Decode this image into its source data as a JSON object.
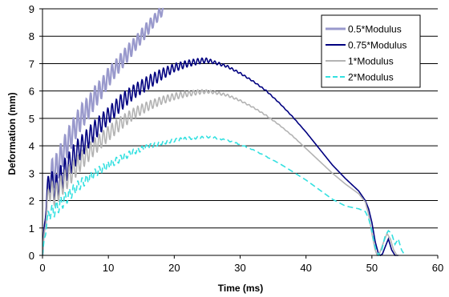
{
  "chart_data": {
    "type": "line",
    "xlabel": "Time (ms)",
    "ylabel": "Deformation (mm)",
    "xlim": [
      0,
      60
    ],
    "ylim": [
      0,
      9
    ],
    "xticks": [
      0,
      10,
      20,
      30,
      40,
      50,
      60
    ],
    "yticks": [
      0,
      1,
      2,
      3,
      4,
      5,
      6,
      7,
      8,
      9
    ],
    "grid": "horizontal",
    "legend_position": "top-right",
    "series": [
      {
        "name": "0.5*Modulus",
        "color": "#9999cc",
        "dash": "solid",
        "x": [
          0,
          0.5,
          1.0,
          1.5,
          2.0,
          3.0,
          4.0,
          5.0,
          6.0,
          7.0,
          8.0,
          9.0,
          10.0,
          11.0,
          12.0,
          13.0,
          14.0,
          15.0,
          16.0,
          17.0,
          18.0,
          18.4
        ],
        "y": [
          0,
          1.5,
          2.6,
          3.0,
          3.1,
          3.7,
          4.2,
          4.7,
          5.1,
          5.4,
          5.8,
          6.1,
          6.5,
          6.8,
          7.1,
          7.4,
          7.7,
          8.0,
          8.3,
          8.6,
          8.9,
          9.0
        ],
        "osc_amp": [
          0,
          0.4,
          0.5,
          0.55,
          0.55,
          0.5,
          0.5,
          0.45,
          0.45,
          0.4,
          0.4,
          0.35,
          0.35,
          0.3,
          0.3,
          0.3,
          0.25,
          0.25,
          0.25,
          0.2,
          0.2,
          0.15
        ]
      },
      {
        "name": "0.75*Modulus",
        "color": "#000080",
        "dash": "solid",
        "x": [
          0,
          0.5,
          1.0,
          1.5,
          2.0,
          3.0,
          4.0,
          5.0,
          6.0,
          8.0,
          10.0,
          12.0,
          14.0,
          16.0,
          18.0,
          20.0,
          22.0,
          24.0,
          25.0,
          26.0,
          28.0,
          30.0,
          32.0,
          34.0,
          36.0,
          38.0,
          40.0,
          42.0,
          44.0,
          46.0,
          48.0,
          49.0,
          49.5,
          50.0,
          50.5,
          51.0,
          51.3,
          51.6,
          52.0,
          52.5,
          53.0,
          53.5,
          54.0
        ],
        "y": [
          0,
          1.8,
          2.8,
          2.6,
          2.4,
          2.9,
          3.3,
          3.7,
          4.0,
          4.6,
          5.1,
          5.6,
          6.0,
          6.3,
          6.6,
          6.85,
          7.0,
          7.1,
          7.12,
          7.05,
          6.9,
          6.65,
          6.35,
          6.0,
          5.55,
          5.05,
          4.5,
          3.9,
          3.3,
          2.8,
          2.35,
          2.0,
          1.7,
          1.2,
          0.5,
          0.05,
          0,
          0.05,
          0.3,
          0.6,
          0.2,
          0,
          0
        ],
        "osc_amp": [
          0,
          0.3,
          0.45,
          0.45,
          0.5,
          0.5,
          0.45,
          0.45,
          0.4,
          0.35,
          0.3,
          0.3,
          0.25,
          0.25,
          0.2,
          0.15,
          0.12,
          0.1,
          0.08,
          0.06,
          0.04,
          0.03,
          0.02,
          0.02,
          0.01,
          0.01,
          0,
          0,
          0,
          0,
          0,
          0,
          0,
          0,
          0,
          0,
          0,
          0,
          0,
          0,
          0,
          0,
          0
        ]
      },
      {
        "name": "1*Modulus",
        "color": "#b3b3b3",
        "dash": "solid",
        "x": [
          0,
          0.5,
          1.0,
          1.5,
          2.0,
          3.0,
          4.0,
          5.0,
          6.0,
          8.0,
          10.0,
          12.0,
          14.0,
          16.0,
          18.0,
          20.0,
          22.0,
          24.0,
          25.0,
          26.0,
          28.0,
          30.0,
          32.0,
          34.0,
          36.0,
          38.0,
          40.0,
          42.0,
          44.0,
          46.0,
          48.0,
          49.0,
          49.5,
          50.0,
          50.5,
          50.8,
          51.2,
          51.8,
          52.3,
          52.8,
          53.3,
          53.8
        ],
        "y": [
          0,
          1.4,
          2.4,
          2.3,
          2.2,
          2.6,
          2.9,
          3.2,
          3.5,
          4.0,
          4.45,
          4.85,
          5.2,
          5.45,
          5.65,
          5.8,
          5.9,
          5.97,
          5.98,
          5.95,
          5.85,
          5.65,
          5.4,
          5.1,
          4.75,
          4.35,
          3.9,
          3.45,
          3.0,
          2.6,
          2.25,
          1.95,
          1.5,
          0.8,
          0.2,
          0,
          0.1,
          0.5,
          0.8,
          0.6,
          0.2,
          0
        ],
        "osc_amp": [
          0,
          0.25,
          0.35,
          0.4,
          0.4,
          0.4,
          0.38,
          0.36,
          0.34,
          0.3,
          0.27,
          0.24,
          0.2,
          0.17,
          0.14,
          0.12,
          0.1,
          0.08,
          0.06,
          0.05,
          0.04,
          0.03,
          0.02,
          0.02,
          0.01,
          0.01,
          0,
          0,
          0,
          0,
          0,
          0,
          0,
          0,
          0,
          0,
          0,
          0,
          0,
          0,
          0,
          0
        ]
      },
      {
        "name": "2*Modulus",
        "color": "#33e0e0",
        "dash": "dashed",
        "x": [
          0,
          0.5,
          1.0,
          1.5,
          2.0,
          3.0,
          4.0,
          5.0,
          6.0,
          8.0,
          10.0,
          12.0,
          14.0,
          16.0,
          18.0,
          20.0,
          22.0,
          24.0,
          25.0,
          26.0,
          28.0,
          30.0,
          32.0,
          34.0,
          36.0,
          38.0,
          40.0,
          42.0,
          44.0,
          46.0,
          48.0,
          49.0,
          49.5,
          50.0,
          50.5,
          51.0,
          51.5,
          52.0,
          52.5,
          53.0,
          53.5,
          54.0,
          54.5,
          55.0
        ],
        "y": [
          0,
          1.0,
          1.55,
          1.6,
          1.7,
          1.95,
          2.2,
          2.45,
          2.65,
          3.0,
          3.3,
          3.55,
          3.8,
          3.97,
          4.1,
          4.2,
          4.27,
          4.3,
          4.32,
          4.3,
          4.2,
          4.05,
          3.85,
          3.6,
          3.35,
          3.05,
          2.75,
          2.4,
          2.05,
          1.8,
          1.7,
          1.6,
          1.35,
          0.9,
          0.3,
          0,
          0.2,
          0.7,
          0.9,
          0.8,
          0.4,
          0.6,
          0.2,
          0
        ],
        "osc_amp": [
          0,
          0.2,
          0.25,
          0.25,
          0.25,
          0.25,
          0.22,
          0.2,
          0.18,
          0.16,
          0.14,
          0.12,
          0.1,
          0.08,
          0.07,
          0.06,
          0.05,
          0.04,
          0.03,
          0.03,
          0.02,
          0.02,
          0.01,
          0.01,
          0,
          0,
          0,
          0,
          0,
          0,
          0,
          0,
          0,
          0,
          0,
          0,
          0,
          0,
          0,
          0,
          0,
          0,
          0,
          0
        ]
      }
    ]
  }
}
